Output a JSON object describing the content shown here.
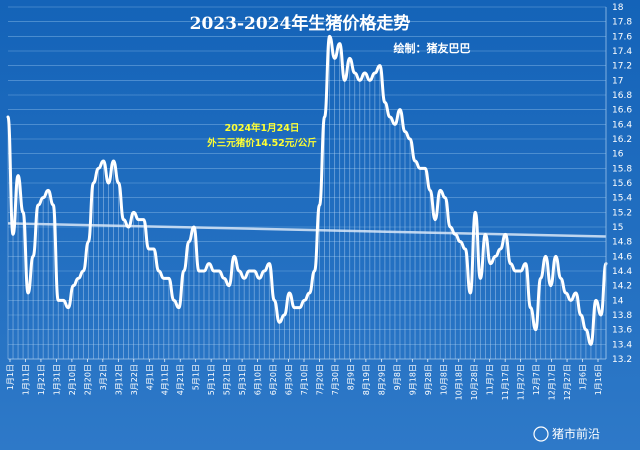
{
  "chart_data": {
    "type": "line",
    "title": "2023-2024年生猪价格走势",
    "subtitle": "绘制：猪友巴巴",
    "annotation_lines": [
      "2024年1月24日",
      "外三元猪价14.52元/公斤"
    ],
    "ylim": [
      13.2,
      18
    ],
    "y_ticks": [
      "13.2",
      "13.4",
      "13.6",
      "13.8",
      "14",
      "14.2",
      "14.4",
      "14.6",
      "14.8",
      "15",
      "15.2",
      "15.4",
      "15.6",
      "15.8",
      "16",
      "16.2",
      "16.4",
      "16.6",
      "16.8",
      "17",
      "17.2",
      "17.4",
      "17.6",
      "17.8",
      "18"
    ],
    "x_ticks": [
      "1月1日",
      "1月11日",
      "1月21日",
      "1月31日",
      "2月10日",
      "2月20日",
      "3月2日",
      "3月12日",
      "3月22日",
      "4月1日",
      "4月11日",
      "4月21日",
      "5月1日",
      "5月11日",
      "5月21日",
      "5月31日",
      "6月10日",
      "6月20日",
      "6月30日",
      "7月10日",
      "7月20日",
      "7月30日",
      "8月9日",
      "8月19日",
      "8月29日",
      "9月8日",
      "9月18日",
      "9月28日",
      "10月8日",
      "10月18日",
      "10月28日",
      "11月7日",
      "11月17日",
      "11月27日",
      "12月7日",
      "12月17日",
      "12月27日",
      "1月6日",
      "1月16日"
    ],
    "series": [
      {
        "values": [
          16.5,
          14.9,
          15.7,
          15.2,
          14.1,
          14.6,
          15.3,
          15.4,
          15.5,
          15.3,
          14.0,
          14.0,
          13.9,
          14.2,
          14.3,
          14.4,
          14.8,
          15.6,
          15.8,
          15.9,
          15.6,
          15.9,
          15.6,
          15.1,
          15.0,
          15.2,
          15.1,
          15.1,
          14.7,
          14.7,
          14.4,
          14.3,
          14.3,
          14.0,
          13.9,
          14.4,
          14.8,
          15.0,
          14.4,
          14.4,
          14.5,
          14.4,
          14.4,
          14.3,
          14.2,
          14.6,
          14.4,
          14.3,
          14.4,
          14.4,
          14.3,
          14.4,
          14.5,
          14.0,
          13.7,
          13.8,
          14.1,
          13.9,
          13.9,
          14.0,
          14.1,
          14.4,
          15.3,
          16.5,
          17.6,
          17.3,
          17.5,
          17.0,
          17.3,
          17.1,
          17.0,
          17.1,
          17.0,
          17.1,
          17.2,
          16.7,
          16.5,
          16.4,
          16.6,
          16.3,
          16.2,
          15.9,
          15.8,
          15.8,
          15.5,
          15.1,
          15.5,
          15.4,
          15.0,
          14.9,
          14.8,
          14.7,
          14.1,
          15.2,
          14.3,
          14.9,
          14.5,
          14.6,
          14.7,
          14.9,
          14.5,
          14.4,
          14.4,
          14.5,
          13.9,
          13.6,
          14.3,
          14.6,
          14.2,
          14.6,
          14.3,
          14.1,
          14.0,
          14.1,
          13.8,
          13.6,
          13.4,
          14.0,
          13.8,
          14.5
        ],
        "color": "#ffffff"
      }
    ],
    "trendline": {
      "start": 15.05,
      "end": 14.87
    },
    "grid": true
  },
  "watermark": "猪市前沿"
}
